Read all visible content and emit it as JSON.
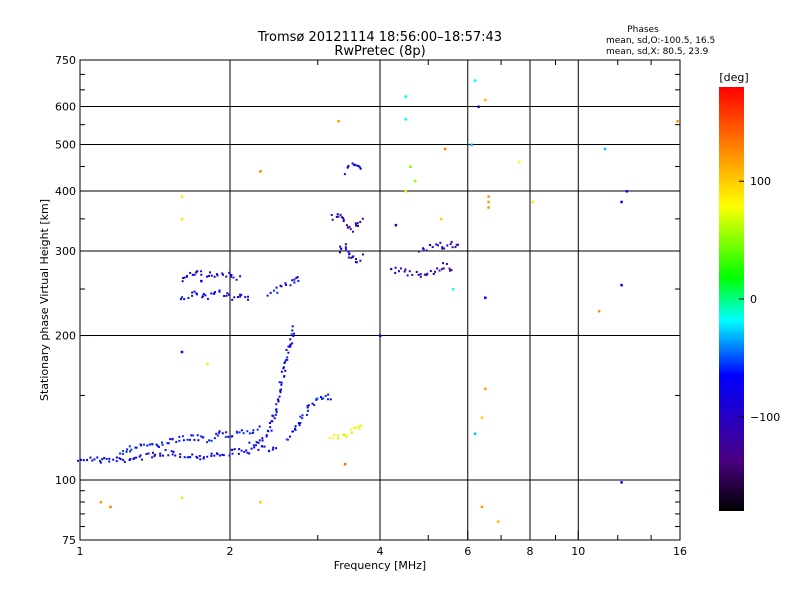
{
  "chart_data": {
    "type": "scatter",
    "title": "Tromsø 20121114 18:56:00–18:57:43",
    "subtitle": "RwPretec (8p)",
    "xlabel": "Frequency [MHz]",
    "ylabel": "Stationary phase Virtual Height [km]",
    "x_scale": "log",
    "y_scale": "log",
    "xlim": [
      1,
      16
    ],
    "ylim": [
      75,
      750
    ],
    "x_ticks": [
      {
        "value": 1,
        "label": "1"
      },
      {
        "value": 2,
        "label": "2"
      },
      {
        "value": 4,
        "label": "4"
      },
      {
        "value": 6,
        "label": "6"
      },
      {
        "value": 8,
        "label": "8"
      },
      {
        "value": 10,
        "label": "10"
      },
      {
        "value": 16,
        "label": "16"
      }
    ],
    "y_ticks": [
      {
        "value": 75,
        "label": "75"
      },
      {
        "value": 100,
        "label": "100"
      },
      {
        "value": 200,
        "label": "200"
      },
      {
        "value": 300,
        "label": "300"
      },
      {
        "value": 400,
        "label": "400"
      },
      {
        "value": 500,
        "label": "500"
      },
      {
        "value": 600,
        "label": "600"
      },
      {
        "value": 750,
        "label": "750"
      }
    ],
    "grid": true,
    "phase_stats": {
      "heading": "Phases",
      "line1": "mean, sd,O:-100.5, 16.5",
      "line2": "mean, sd,X:  80.5, 23.9"
    },
    "colorbar": {
      "label": "[deg]",
      "range": [
        -180,
        180
      ],
      "ticks": [
        {
          "value": 100,
          "label": "100"
        },
        {
          "value": 0,
          "label": "0"
        },
        {
          "value": -100,
          "label": "−100"
        }
      ]
    },
    "traces": [
      {
        "x": [
          1.0,
          1.1,
          1.2,
          1.3,
          1.4,
          1.5,
          1.6,
          1.7,
          1.8,
          1.9,
          2.0,
          2.1,
          2.2,
          2.3,
          2.4,
          2.5
        ],
        "y": [
          111,
          110,
          110,
          111,
          113,
          114,
          113,
          112,
          112,
          113,
          114,
          115,
          115,
          116,
          116,
          117
        ],
        "phase": -105
      },
      {
        "x": [
          1.2,
          1.3,
          1.4,
          1.5,
          1.6,
          1.7,
          1.8,
          1.9,
          2.0,
          2.1,
          2.2,
          2.3
        ],
        "y": [
          114,
          118,
          117,
          120,
          122,
          123,
          121,
          125,
          124,
          127,
          126,
          128
        ],
        "phase": -95
      },
      {
        "x": [
          2.2,
          2.3,
          2.4,
          2.45,
          2.5,
          2.55,
          2.6,
          2.65,
          2.7
        ],
        "y": [
          118,
          121,
          126,
          135,
          150,
          165,
          180,
          195,
          210
        ],
        "phase": -100
      },
      {
        "x": [
          2.6,
          2.7,
          2.8,
          2.9,
          3.0,
          3.1,
          3.2
        ],
        "y": [
          122,
          128,
          135,
          142,
          148,
          150,
          147
        ],
        "phase": -95
      },
      {
        "x": [
          1.6,
          1.7,
          1.8,
          1.9,
          2.0,
          2.1,
          2.2
        ],
        "y": [
          240,
          244,
          241,
          245,
          240,
          243,
          240
        ],
        "phase": -105
      },
      {
        "x": [
          1.6,
          1.65,
          1.7,
          1.8,
          1.9,
          2.0,
          2.1
        ],
        "y": [
          262,
          266,
          270,
          268,
          265,
          267,
          263
        ],
        "phase": -110
      },
      {
        "x": [
          2.4,
          2.5,
          2.6,
          2.7,
          2.75
        ],
        "y": [
          245,
          250,
          255,
          260,
          265
        ],
        "phase": -100
      },
      {
        "x": [
          3.2,
          3.3,
          3.4,
          3.5,
          3.6,
          3.7
        ],
        "y": [
          350,
          360,
          345,
          330,
          340,
          355
        ],
        "phase": -130
      },
      {
        "x": [
          3.3,
          3.4,
          3.5,
          3.6,
          3.7
        ],
        "y": [
          300,
          310,
          290,
          285,
          295
        ],
        "phase": -120
      },
      {
        "x": [
          3.4,
          3.5,
          3.6,
          3.7
        ],
        "y": [
          440,
          455,
          450,
          445
        ],
        "phase": -105
      },
      {
        "x": [
          4.2,
          4.4,
          4.6,
          4.8,
          5.0,
          5.2,
          5.4,
          5.6
        ],
        "y": [
          275,
          272,
          270,
          268,
          270,
          275,
          280,
          270
        ],
        "phase": -125
      },
      {
        "x": [
          4.8,
          5.0,
          5.2,
          5.4,
          5.6,
          5.8
        ],
        "y": [
          300,
          305,
          310,
          305,
          310,
          308
        ],
        "phase": -120
      },
      {
        "x": [
          3.2,
          3.3,
          3.4,
          3.5,
          3.6,
          3.7
        ],
        "y": [
          122,
          123,
          124,
          126,
          128,
          130
        ],
        "phase": 75
      }
    ],
    "points": [
      {
        "x": 1.1,
        "y": 90,
        "phase": 120
      },
      {
        "x": 1.15,
        "y": 88,
        "phase": 130
      },
      {
        "x": 1.6,
        "y": 92,
        "phase": 90
      },
      {
        "x": 1.6,
        "y": 390,
        "phase": 90
      },
      {
        "x": 1.6,
        "y": 350,
        "phase": 90
      },
      {
        "x": 1.6,
        "y": 185,
        "phase": -100
      },
      {
        "x": 1.75,
        "y": 260,
        "phase": -110
      },
      {
        "x": 1.8,
        "y": 175,
        "phase": 90
      },
      {
        "x": 2.3,
        "y": 440,
        "phase": 130
      },
      {
        "x": 2.3,
        "y": 90,
        "phase": 100
      },
      {
        "x": 3.3,
        "y": 560,
        "phase": 120
      },
      {
        "x": 3.4,
        "y": 108,
        "phase": 140
      },
      {
        "x": 4.0,
        "y": 200,
        "phase": -120
      },
      {
        "x": 4.5,
        "y": 630,
        "phase": -20
      },
      {
        "x": 4.5,
        "y": 565,
        "phase": -20
      },
      {
        "x": 4.6,
        "y": 450,
        "phase": 40
      },
      {
        "x": 4.3,
        "y": 340,
        "phase": -120
      },
      {
        "x": 4.5,
        "y": 400,
        "phase": 90
      },
      {
        "x": 4.7,
        "y": 420,
        "phase": 40
      },
      {
        "x": 5.4,
        "y": 490,
        "phase": 130
      },
      {
        "x": 5.3,
        "y": 350,
        "phase": 100
      },
      {
        "x": 5.6,
        "y": 250,
        "phase": -20
      },
      {
        "x": 6.2,
        "y": 680,
        "phase": -20
      },
      {
        "x": 6.3,
        "y": 600,
        "phase": -110
      },
      {
        "x": 6.1,
        "y": 500,
        "phase": -40
      },
      {
        "x": 6.5,
        "y": 620,
        "phase": 110
      },
      {
        "x": 6.6,
        "y": 370,
        "phase": 120
      },
      {
        "x": 6.6,
        "y": 380,
        "phase": 120
      },
      {
        "x": 6.6,
        "y": 390,
        "phase": 120
      },
      {
        "x": 6.5,
        "y": 240,
        "phase": -100
      },
      {
        "x": 6.5,
        "y": 155,
        "phase": 120
      },
      {
        "x": 6.4,
        "y": 135,
        "phase": 100
      },
      {
        "x": 6.2,
        "y": 125,
        "phase": -40
      },
      {
        "x": 6.4,
        "y": 88,
        "phase": 120
      },
      {
        "x": 6.9,
        "y": 82,
        "phase": 110
      },
      {
        "x": 7.6,
        "y": 460,
        "phase": 80
      },
      {
        "x": 8.1,
        "y": 380,
        "phase": 90
      },
      {
        "x": 11.0,
        "y": 225,
        "phase": 120
      },
      {
        "x": 11.3,
        "y": 490,
        "phase": -40
      },
      {
        "x": 12.2,
        "y": 380,
        "phase": -100
      },
      {
        "x": 12.5,
        "y": 400,
        "phase": -100
      },
      {
        "x": 12.2,
        "y": 255,
        "phase": -110
      },
      {
        "x": 12.2,
        "y": 99,
        "phase": -110
      },
      {
        "x": 15.8,
        "y": 560,
        "phase": 120
      }
    ]
  }
}
